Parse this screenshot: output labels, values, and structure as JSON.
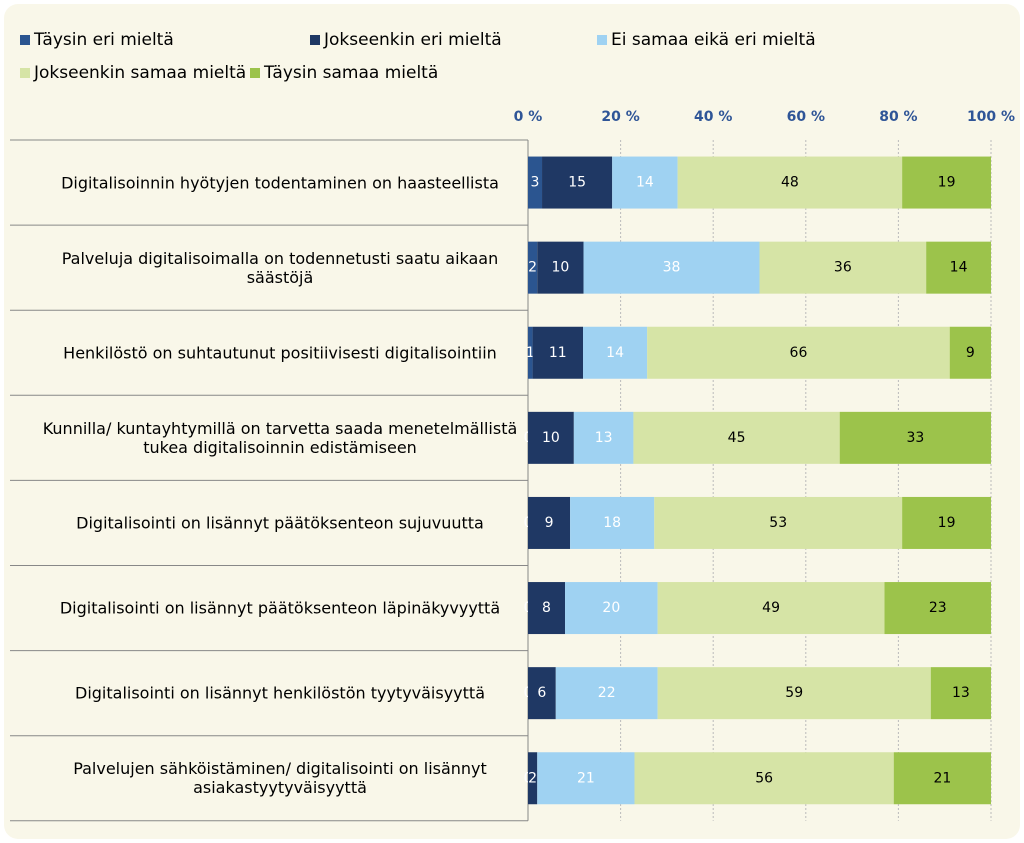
{
  "chart_data": {
    "type": "stacked_bar_100",
    "categories": [
      "Digitalisoinnin hyötyjen todentaminen on haasteellista",
      "Palveluja digitalisoimalla on todennetusti saatu aikaan säästöjä",
      "Henkilöstö on suhtautunut positiivisesti digitalisointiin",
      "Kunnilla/ kuntayhtymillä on tarvetta saada menetelmällistä tukea digitalisoinnin edistämiseen",
      "Digitalisointi on lisännyt päätöksenteon sujuvuutta",
      "Digitalisointi on lisännyt päätöksenteon läpinäkyvyyttä",
      "Digitalisointi on lisännyt henkilöstön tyytyväisyyttä",
      "Palvelujen sähköistäminen/ digitalisointi on lisännyt asiakastyytyväisyyttä"
    ],
    "series": [
      {
        "name": "Täysin eri mieltä",
        "color": "#2b5590",
        "label_color": "#ffffff",
        "values": [
          3,
          2,
          1,
          0,
          0,
          0,
          0,
          0
        ]
      },
      {
        "name": "Jokseenkin eri mieltä",
        "color": "#1f3864",
        "label_color": "#ffffff",
        "values": [
          15,
          10,
          11,
          10,
          9,
          8,
          6,
          2
        ]
      },
      {
        "name": "Ei samaa eikä eri mieltä",
        "color": "#9fd2f2",
        "label_color": "#ffffff",
        "values": [
          14,
          38,
          14,
          13,
          18,
          20,
          22,
          21
        ]
      },
      {
        "name": "Jokseenkin samaa mieltä",
        "color": "#d6e4a6",
        "label_color": "#000000",
        "values": [
          48,
          36,
          66,
          45,
          53,
          49,
          59,
          56
        ]
      },
      {
        "name": "Täysin samaa mieltä",
        "color": "#9cc34b",
        "label_color": "#000000",
        "values": [
          19,
          14,
          9,
          33,
          19,
          23,
          13,
          21
        ]
      }
    ],
    "xlim": [
      0,
      100
    ],
    "xticks": [
      {
        "value": 0,
        "label": "0 %"
      },
      {
        "value": 20,
        "label": "20 %"
      },
      {
        "value": 40,
        "label": "40 %"
      },
      {
        "value": 60,
        "label": "60 %"
      },
      {
        "value": 80,
        "label": "80 %"
      },
      {
        "value": 100,
        "label": "100 %"
      }
    ],
    "grid": true,
    "legend": "top"
  }
}
